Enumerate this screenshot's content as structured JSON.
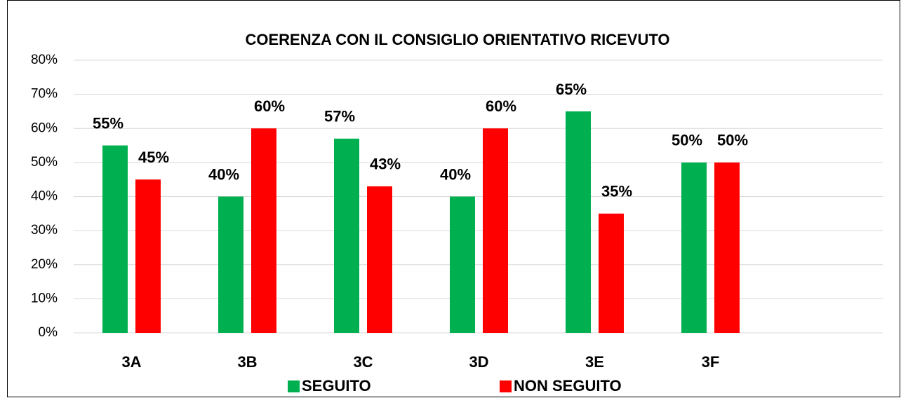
{
  "chart_data": {
    "type": "bar",
    "title": "COERENZA CON IL CONSIGLIO ORIENTATIVO RICEVUTO",
    "categories": [
      "3A",
      "3B",
      "3C",
      "3D",
      "3E",
      "3F"
    ],
    "series": [
      {
        "name": "SEGUITO",
        "color": "#00b050",
        "values": [
          55,
          40,
          57,
          40,
          65,
          50
        ],
        "value_labels": [
          "55%",
          "40%",
          "57%",
          "40%",
          "65%",
          "50%"
        ]
      },
      {
        "name": "NON SEGUITO",
        "color": "#ff0000",
        "values": [
          45,
          60,
          43,
          60,
          35,
          50
        ],
        "value_labels": [
          "45%",
          "60%",
          "43%",
          "60%",
          "35%",
          "50%"
        ]
      }
    ],
    "ylim": [
      0,
      80
    ],
    "yticks": [
      {
        "value": 0,
        "label": "0%"
      },
      {
        "value": 10,
        "label": "10%"
      },
      {
        "value": 20,
        "label": "20%"
      },
      {
        "value": 30,
        "label": "30%"
      },
      {
        "value": 40,
        "label": "40%"
      },
      {
        "value": 50,
        "label": "50%"
      },
      {
        "value": 60,
        "label": "60%"
      },
      {
        "value": 70,
        "label": "70%"
      },
      {
        "value": 80,
        "label": "80%"
      }
    ],
    "grid": true
  }
}
